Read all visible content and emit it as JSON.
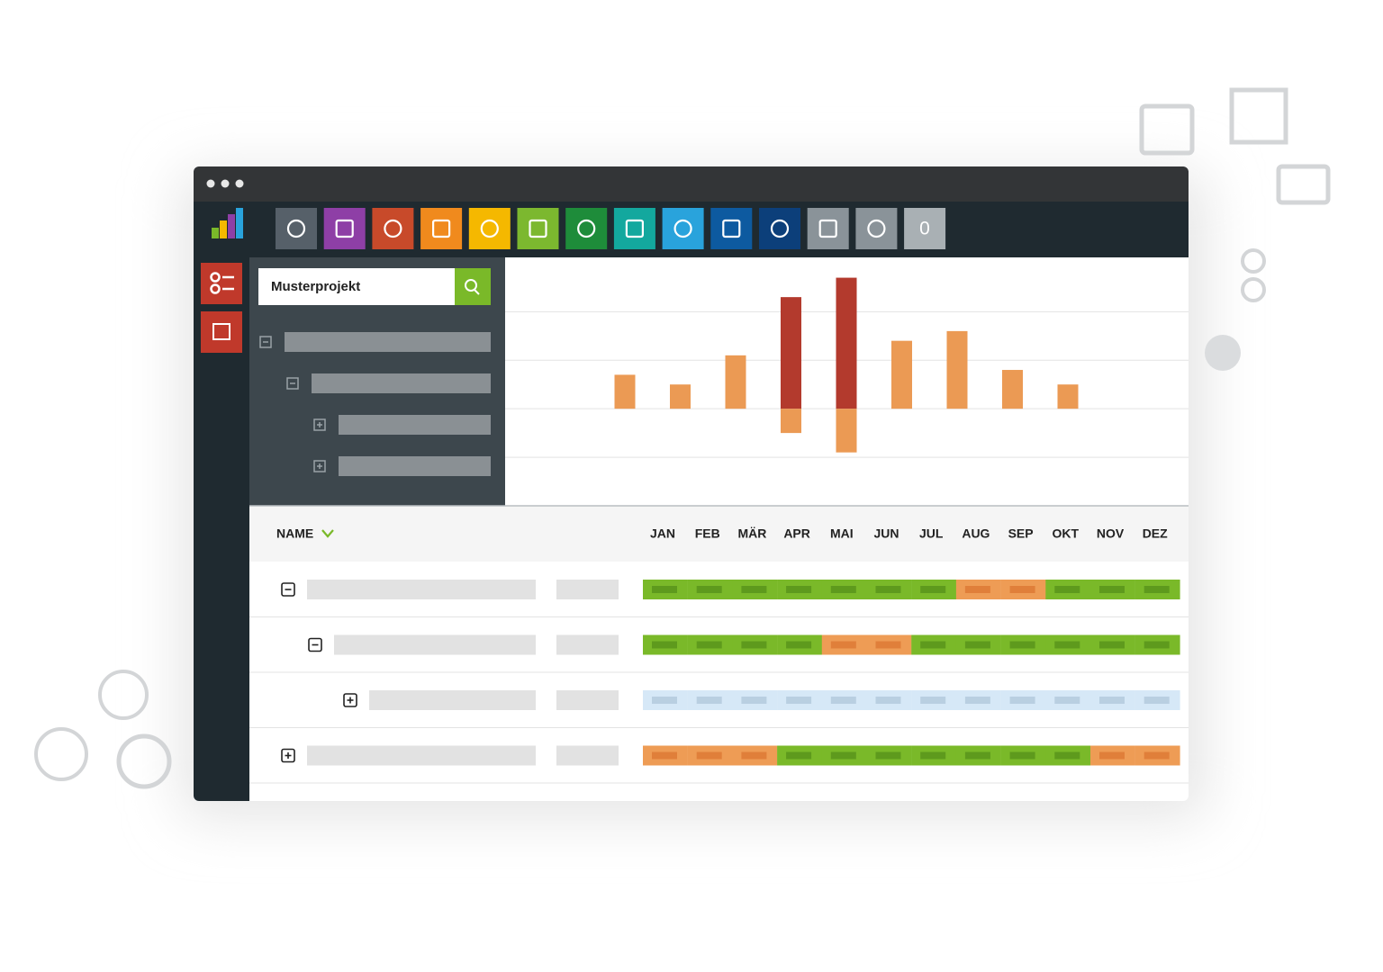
{
  "nav": {
    "badge": "0"
  },
  "search": {
    "text": "Musterprojekt"
  },
  "chart_data": {
    "type": "bar",
    "categories": [
      null,
      null,
      null,
      null,
      null,
      null,
      null,
      null,
      null
    ],
    "series": [
      {
        "color": "#eb9a54",
        "values": [
          0.7,
          0.5,
          1.1,
          null,
          null,
          1.4,
          1.6,
          0.8,
          0.5
        ]
      },
      {
        "color": "#b33a2d",
        "values": [
          null,
          null,
          null,
          2.3,
          2.7,
          null,
          null,
          null,
          null
        ]
      },
      {
        "color": "#eb9a54",
        "values": [
          null,
          null,
          null,
          -0.5,
          -0.9,
          null,
          null,
          null,
          null
        ]
      }
    ],
    "ylim": [
      -2,
      3.1
    ],
    "yticks": [
      -1,
      0,
      1,
      2
    ],
    "grid": true
  },
  "table": {
    "header": "NAME",
    "months": [
      "JAN",
      "FEB",
      "MÄR",
      "APR",
      "MAI",
      "JUN",
      "JUL",
      "AUG",
      "SEP",
      "OKT",
      "NOV",
      "DEZ"
    ],
    "rows": [
      {
        "expanded": true,
        "colors": [
          "#7ab929",
          "#7ab929",
          "#7ab929",
          "#7ab929",
          "#7ab929",
          "#7ab929",
          "#7ab929",
          "#ee9c55",
          "#ee9c55",
          "#7ab929",
          "#7ab929",
          "#7ab929"
        ]
      },
      {
        "expanded": true,
        "colors": [
          "#7ab929",
          "#7ab929",
          "#7ab929",
          "#7ab929",
          "#ee9c55",
          "#ee9c55",
          "#7ab929",
          "#7ab929",
          "#7ab929",
          "#7ab929",
          "#7ab929",
          "#7ab929"
        ]
      },
      {
        "expanded": false,
        "colors": [
          "#d6e8f7",
          "#d6e8f7",
          "#d6e8f7",
          "#d6e8f7",
          "#d6e8f7",
          "#d6e8f7",
          "#d6e8f7",
          "#d6e8f7",
          "#d6e8f7",
          "#d6e8f7",
          "#d6e8f7",
          "#d6e8f7"
        ]
      },
      {
        "expanded": false,
        "colors": [
          "#ee9c55",
          "#ee9c55",
          "#ee9c55",
          "#7ab929",
          "#7ab929",
          "#7ab929",
          "#7ab929",
          "#7ab929",
          "#7ab929",
          "#7ab929",
          "#ee9c55",
          "#ee9c55"
        ]
      }
    ]
  }
}
